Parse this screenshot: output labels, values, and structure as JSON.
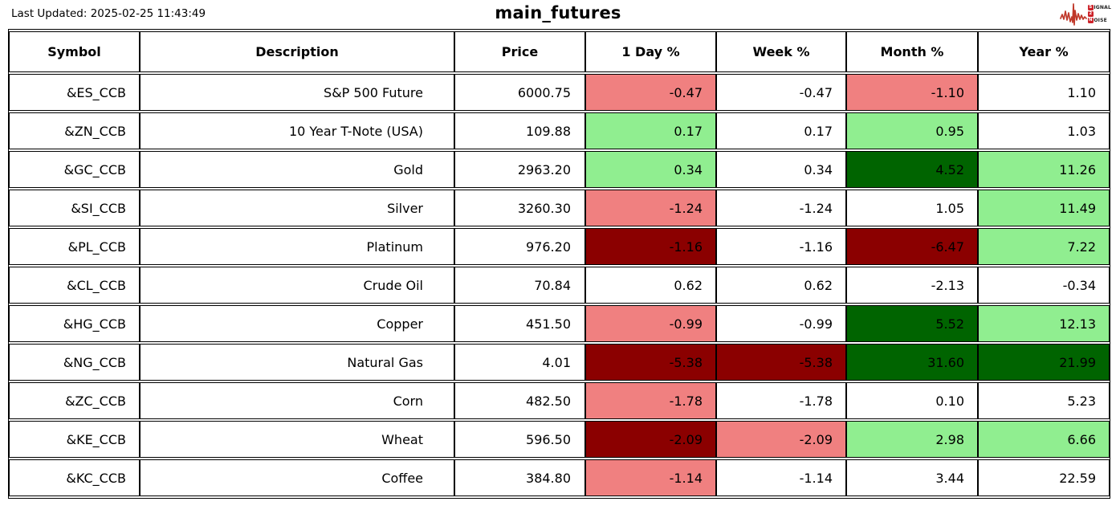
{
  "meta": {
    "last_updated": "Last Updated: 2025-02-25 11:43:49",
    "title": "main_futures"
  },
  "logo": {
    "line1_initial": "S",
    "line1_rest": "IGNAL",
    "line2_initial": "2",
    "line2_rest": "",
    "line3_initial": "N",
    "line3_rest": "OISE",
    "waveform_color": "#c0392b"
  },
  "palette": {
    "white": "#ffffff",
    "lightred": "#f08080",
    "lightgreen": "#90ee90",
    "darkred": "#8b0000",
    "darkgreen": "#006400",
    "border": "#000000"
  },
  "chart_data": {
    "type": "table",
    "title": "main_futures",
    "columns": [
      "Symbol",
      "Description",
      "Price",
      "1 Day %",
      "Week %",
      "Month %",
      "Year %"
    ],
    "rows": [
      {
        "symbol": "&ES_CCB",
        "description": "S&P 500 Future",
        "price": "6000.75",
        "changes": [
          {
            "value": "-0.47",
            "color": "lightred"
          },
          {
            "value": "-0.47",
            "color": "white"
          },
          {
            "value": "-1.10",
            "color": "lightred"
          },
          {
            "value": "1.10",
            "color": "white"
          }
        ]
      },
      {
        "symbol": "&ZN_CCB",
        "description": "10 Year T-Note (USA)",
        "price": "109.88",
        "changes": [
          {
            "value": "0.17",
            "color": "lightgreen"
          },
          {
            "value": "0.17",
            "color": "white"
          },
          {
            "value": "0.95",
            "color": "lightgreen"
          },
          {
            "value": "1.03",
            "color": "white"
          }
        ]
      },
      {
        "symbol": "&GC_CCB",
        "description": "Gold",
        "price": "2963.20",
        "changes": [
          {
            "value": "0.34",
            "color": "lightgreen"
          },
          {
            "value": "0.34",
            "color": "white"
          },
          {
            "value": "4.52",
            "color": "darkgreen"
          },
          {
            "value": "11.26",
            "color": "lightgreen"
          }
        ]
      },
      {
        "symbol": "&SI_CCB",
        "description": "Silver",
        "price": "3260.30",
        "changes": [
          {
            "value": "-1.24",
            "color": "lightred"
          },
          {
            "value": "-1.24",
            "color": "white"
          },
          {
            "value": "1.05",
            "color": "white"
          },
          {
            "value": "11.49",
            "color": "lightgreen"
          }
        ]
      },
      {
        "symbol": "&PL_CCB",
        "description": "Platinum",
        "price": "976.20",
        "changes": [
          {
            "value": "-1.16",
            "color": "darkred"
          },
          {
            "value": "-1.16",
            "color": "white"
          },
          {
            "value": "-6.47",
            "color": "darkred"
          },
          {
            "value": "7.22",
            "color": "lightgreen"
          }
        ]
      },
      {
        "symbol": "&CL_CCB",
        "description": "Crude Oil",
        "price": "70.84",
        "changes": [
          {
            "value": "0.62",
            "color": "white"
          },
          {
            "value": "0.62",
            "color": "white"
          },
          {
            "value": "-2.13",
            "color": "white"
          },
          {
            "value": "-0.34",
            "color": "white"
          }
        ]
      },
      {
        "symbol": "&HG_CCB",
        "description": "Copper",
        "price": "451.50",
        "changes": [
          {
            "value": "-0.99",
            "color": "lightred"
          },
          {
            "value": "-0.99",
            "color": "white"
          },
          {
            "value": "5.52",
            "color": "darkgreen"
          },
          {
            "value": "12.13",
            "color": "lightgreen"
          }
        ]
      },
      {
        "symbol": "&NG_CCB",
        "description": "Natural Gas",
        "price": "4.01",
        "changes": [
          {
            "value": "-5.38",
            "color": "darkred"
          },
          {
            "value": "-5.38",
            "color": "darkred"
          },
          {
            "value": "31.60",
            "color": "darkgreen"
          },
          {
            "value": "21.99",
            "color": "darkgreen"
          }
        ]
      },
      {
        "symbol": "&ZC_CCB",
        "description": "Corn",
        "price": "482.50",
        "changes": [
          {
            "value": "-1.78",
            "color": "lightred"
          },
          {
            "value": "-1.78",
            "color": "white"
          },
          {
            "value": "0.10",
            "color": "white"
          },
          {
            "value": "5.23",
            "color": "white"
          }
        ]
      },
      {
        "symbol": "&KE_CCB",
        "description": "Wheat",
        "price": "596.50",
        "changes": [
          {
            "value": "-2.09",
            "color": "darkred"
          },
          {
            "value": "-2.09",
            "color": "lightred"
          },
          {
            "value": "2.98",
            "color": "lightgreen"
          },
          {
            "value": "6.66",
            "color": "lightgreen"
          }
        ]
      },
      {
        "symbol": "&KC_CCB",
        "description": "Coffee",
        "price": "384.80",
        "changes": [
          {
            "value": "-1.14",
            "color": "lightred"
          },
          {
            "value": "-1.14",
            "color": "white"
          },
          {
            "value": "3.44",
            "color": "white"
          },
          {
            "value": "22.59",
            "color": "white"
          }
        ]
      }
    ]
  }
}
